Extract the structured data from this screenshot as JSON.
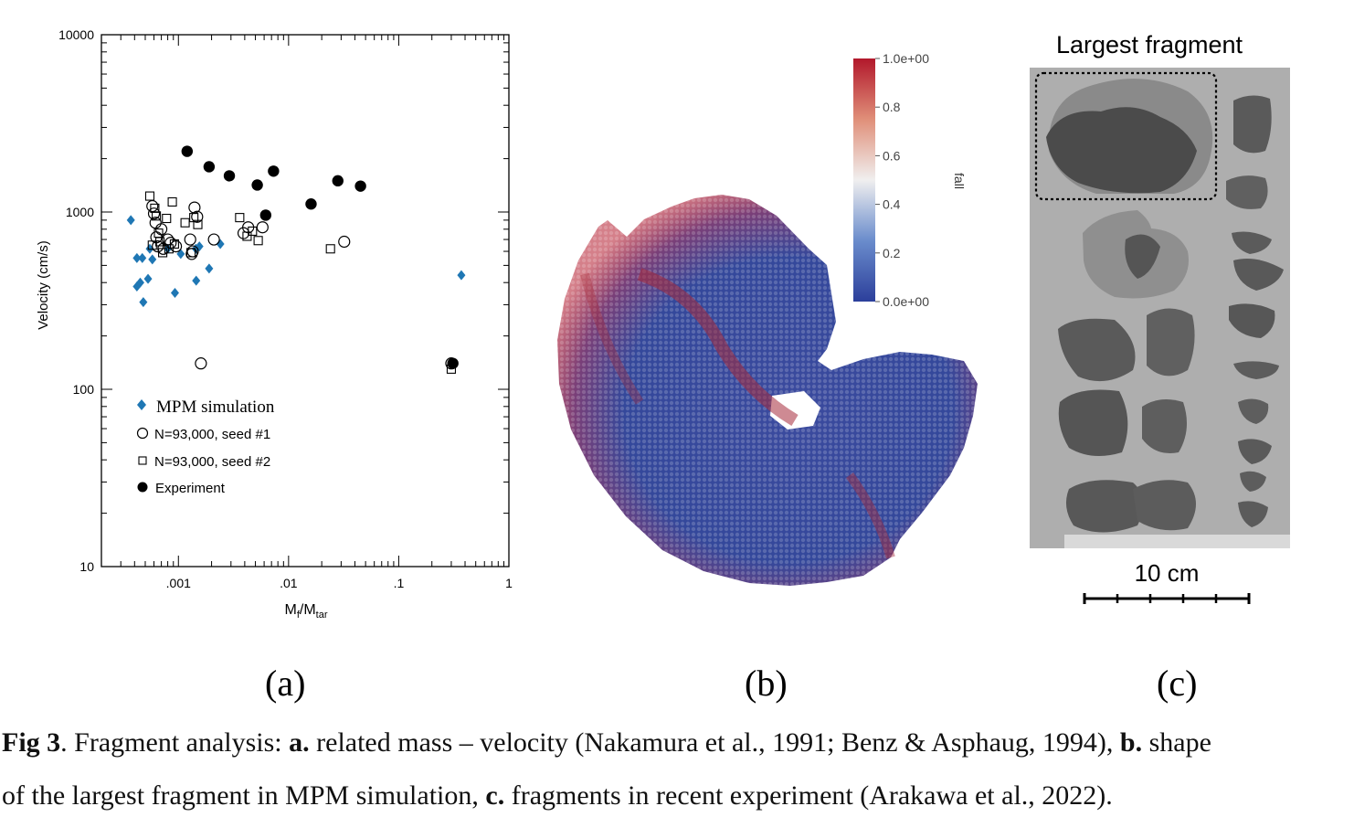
{
  "panels": {
    "a": {
      "label": "(a)"
    },
    "b": {
      "label": "(b)"
    },
    "c": {
      "label": "(c)"
    }
  },
  "chart_data": {
    "type": "scatter",
    "xscale": "log",
    "yscale": "log",
    "xlim": [
      0.0002,
      1
    ],
    "ylim": [
      10,
      10000
    ],
    "x_ticks": [
      {
        "value": 0.001,
        "label": ".001"
      },
      {
        "value": 0.01,
        "label": ".01"
      },
      {
        "value": 0.1,
        "label": ".1"
      },
      {
        "value": 1,
        "label": "1"
      }
    ],
    "y_ticks": [
      {
        "value": 10,
        "label": "10"
      },
      {
        "value": 100,
        "label": "100"
      },
      {
        "value": 1000,
        "label": "1000"
      },
      {
        "value": 10000,
        "label": "10000"
      }
    ],
    "xlabel": "Mf/Mtar",
    "xlabel_main": "M",
    "xlabel_sub1": "f",
    "xlabel_mid": "/M",
    "xlabel_sub2": "tar",
    "ylabel": "Velocity (cm/s)",
    "legend_position": "lower-left",
    "series": [
      {
        "name": "MPM simulation",
        "marker": "diamond",
        "color": "#1f77b4",
        "points": [
          [
            0.00037,
            900
          ],
          [
            0.00042,
            380
          ],
          [
            0.00042,
            550
          ],
          [
            0.00045,
            400
          ],
          [
            0.00047,
            550
          ],
          [
            0.00048,
            310
          ],
          [
            0.00053,
            420
          ],
          [
            0.00055,
            620
          ],
          [
            0.00058,
            540
          ],
          [
            0.0008,
            620
          ],
          [
            0.00093,
            350
          ],
          [
            0.00105,
            580
          ],
          [
            0.00144,
            620
          ],
          [
            0.00145,
            410
          ],
          [
            0.00155,
            640
          ],
          [
            0.0019,
            480
          ],
          [
            0.0024,
            660
          ],
          [
            0.37,
            440
          ]
        ]
      },
      {
        "name": "N=93,000, seed #1",
        "marker": "circle-open",
        "color": "#000000",
        "points": [
          [
            0.00058,
            1080
          ],
          [
            0.0006,
            980
          ],
          [
            0.00062,
            870
          ],
          [
            0.00063,
            720
          ],
          [
            0.00065,
            640
          ],
          [
            0.0007,
            800
          ],
          [
            0.00073,
            620
          ],
          [
            0.0008,
            700
          ],
          [
            0.00085,
            670
          ],
          [
            0.00095,
            640
          ],
          [
            0.00128,
            700
          ],
          [
            0.00132,
            580
          ],
          [
            0.00135,
            600
          ],
          [
            0.0014,
            1060
          ],
          [
            0.00148,
            940
          ],
          [
            0.0016,
            140
          ],
          [
            0.0021,
            700
          ],
          [
            0.0039,
            760
          ],
          [
            0.0043,
            820
          ],
          [
            0.0058,
            820
          ],
          [
            0.032,
            680
          ],
          [
            0.3,
            140
          ]
        ]
      },
      {
        "name": "N=93,000, seed #2",
        "marker": "square-open",
        "color": "#000000",
        "points": [
          [
            0.00055,
            1230
          ],
          [
            0.00058,
            650
          ],
          [
            0.00061,
            1050
          ],
          [
            0.00063,
            950
          ],
          [
            0.00066,
            760
          ],
          [
            0.00068,
            680
          ],
          [
            0.00072,
            590
          ],
          [
            0.00078,
            920
          ],
          [
            0.00082,
            620
          ],
          [
            0.00088,
            1140
          ],
          [
            0.00092,
            660
          ],
          [
            0.00115,
            870
          ],
          [
            0.0013,
            590
          ],
          [
            0.00138,
            930
          ],
          [
            0.0015,
            850
          ],
          [
            0.0036,
            930
          ],
          [
            0.0042,
            730
          ],
          [
            0.0047,
            780
          ],
          [
            0.0053,
            690
          ],
          [
            0.024,
            620
          ],
          [
            0.3,
            130
          ]
        ]
      },
      {
        "name": "Experiment",
        "marker": "circle-filled",
        "color": "#000000",
        "points": [
          [
            0.0012,
            2200
          ],
          [
            0.0019,
            1800
          ],
          [
            0.0029,
            1600
          ],
          [
            0.0052,
            1420
          ],
          [
            0.0062,
            960
          ],
          [
            0.0073,
            1700
          ],
          [
            0.016,
            1110
          ],
          [
            0.028,
            1500
          ],
          [
            0.045,
            1400
          ],
          [
            0.31,
            140
          ]
        ]
      }
    ]
  },
  "colorbar": {
    "title": "fall",
    "ticks": [
      "1.0e+00",
      "0.8",
      "0.6",
      "0.4",
      "0.2",
      "0.0e+00"
    ],
    "color_high": "#b2182b",
    "color_mid": "#f7f7f7",
    "color_low": "#2c3f9b"
  },
  "photo": {
    "title": "Largest fragment",
    "scale_label": "10 cm"
  },
  "caption": {
    "line1_bold1": "Fig 3",
    "line1_t1": ". Fragment analysis: ",
    "line1_bold2": "a.",
    "line1_t2": " related mass – velocity (Nakamura et al., 1991; Benz & Asphaug, 1994), ",
    "line1_bold3": "b.",
    "line1_t3": " shape",
    "line2_t1": "of the largest fragment in MPM simulation, ",
    "line2_bold1": "c.",
    "line2_t2": " fragments in recent experiment (Arakawa et al., 2022)."
  }
}
